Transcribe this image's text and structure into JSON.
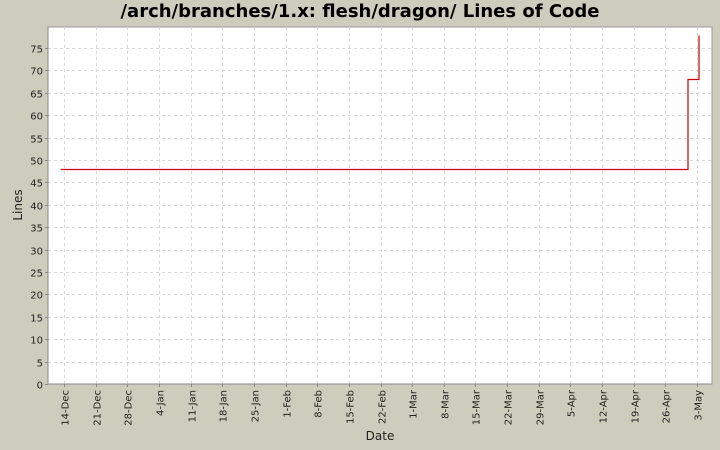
{
  "chart_data": {
    "type": "line",
    "title": "/arch/branches/1.x: flesh/dragon/ Lines of Code",
    "xlabel": "Date",
    "ylabel": "Lines",
    "ylim": [
      0,
      79
    ],
    "yticks": [
      0,
      5,
      10,
      15,
      20,
      25,
      30,
      35,
      40,
      45,
      50,
      55,
      60,
      65,
      70,
      75
    ],
    "xticks": [
      "14-Dec",
      "21-Dec",
      "28-Dec",
      "4-Jan",
      "11-Jan",
      "18-Jan",
      "25-Jan",
      "1-Feb",
      "8-Feb",
      "15-Feb",
      "22-Feb",
      "1-Mar",
      "8-Mar",
      "15-Mar",
      "22-Mar",
      "29-Mar",
      "5-Apr",
      "12-Apr",
      "19-Apr",
      "26-Apr",
      "3-May"
    ],
    "grid": true,
    "legend": false,
    "line_color": "#cc0000",
    "step": true,
    "series": [
      {
        "name": "Lines",
        "points": [
          {
            "x": "13-Dec",
            "y": 48
          },
          {
            "x": "30-Apr",
            "y": 48
          },
          {
            "x": "30-Apr",
            "y": 68
          },
          {
            "x": "3-May",
            "y": 68
          },
          {
            "x": "3-May",
            "y": 78
          }
        ]
      }
    ]
  },
  "colors": {
    "background": "#cdcdbd",
    "plot_background": "#ffffff",
    "gridline": "#d8d8d8",
    "axis": "#888888",
    "line": "#cc0000"
  }
}
